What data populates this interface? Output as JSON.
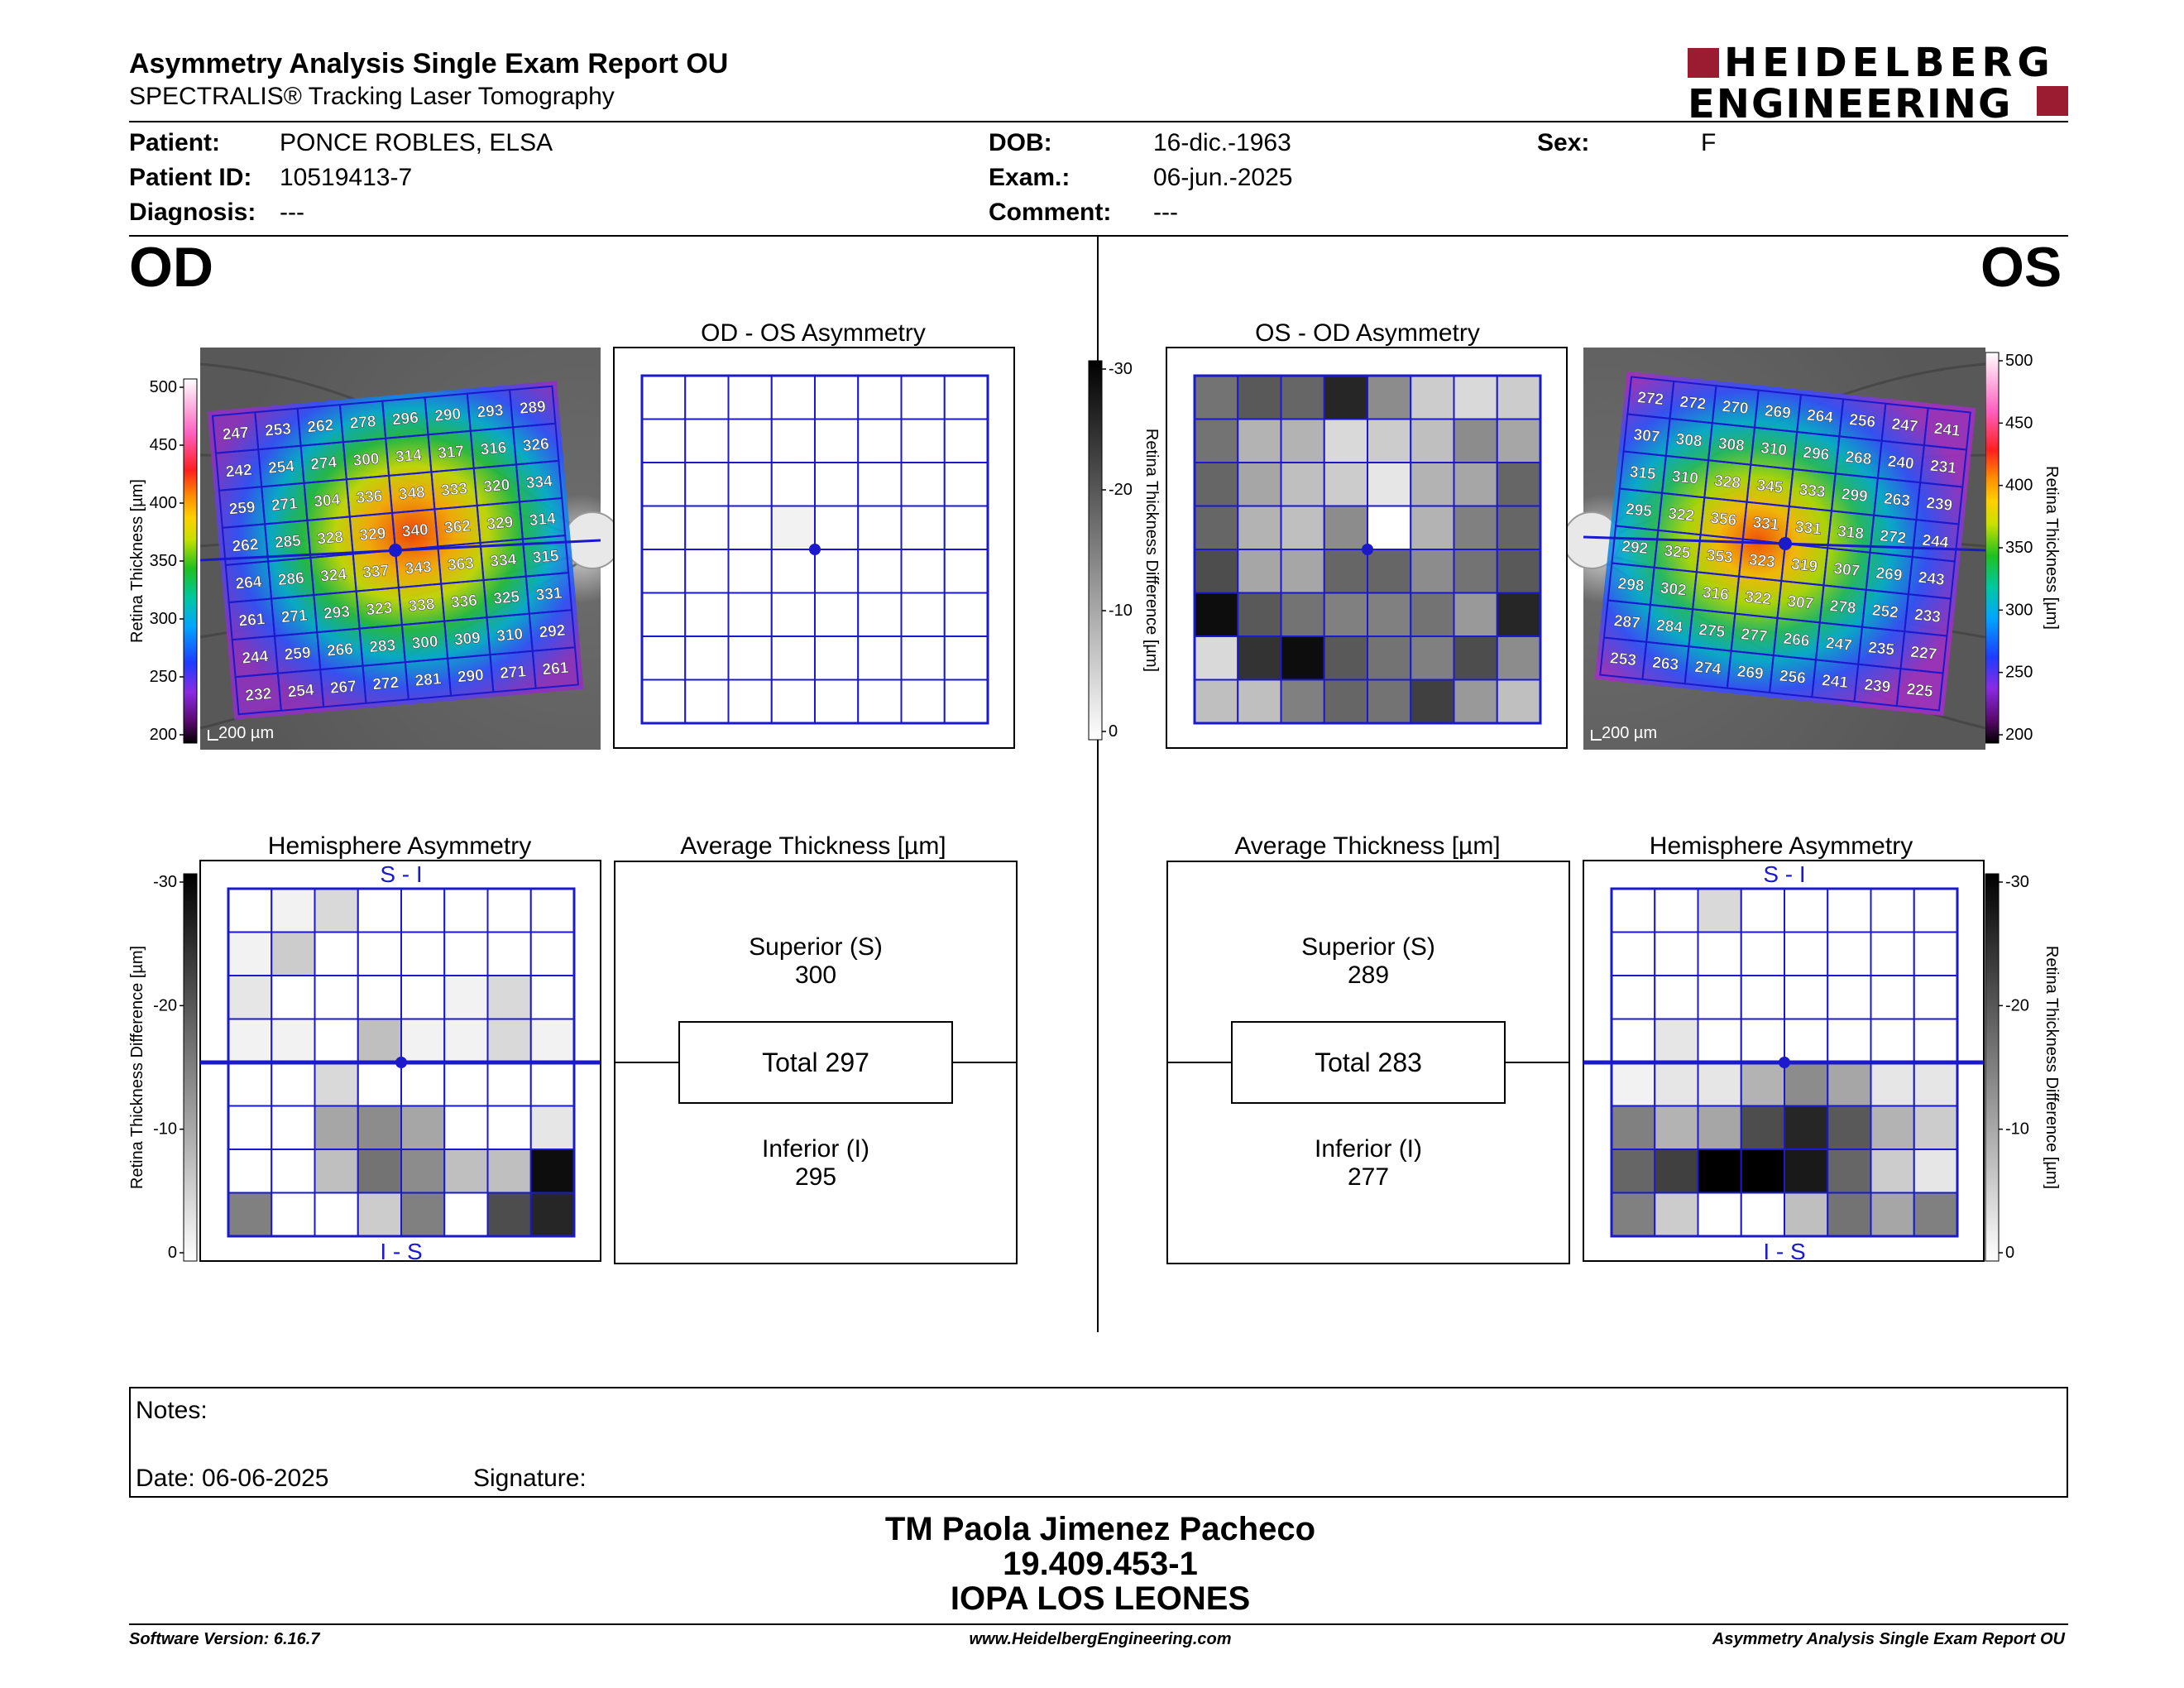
{
  "header": {
    "title": "Asymmetry Analysis Single Exam Report OU",
    "subtitle": "SPECTRALIS® Tracking Laser Tomography",
    "logo_line1": "HEIDELBERG",
    "logo_line2": "ENGINEERING"
  },
  "patient": {
    "patient_label": "Patient:",
    "patient_value": "PONCE ROBLES, ELSA",
    "id_label": "Patient ID:",
    "id_value": "10519413-7",
    "diag_label": "Diagnosis:",
    "diag_value": "---",
    "dob_label": "DOB:",
    "dob_value": "16-dic.-1963",
    "exam_label": "Exam.:",
    "exam_value": "06-jun.-2025",
    "comment_label": "Comment:",
    "comment_value": "---",
    "sex_label": "Sex:",
    "sex_value": "F"
  },
  "eyes": {
    "left": "OD",
    "right": "OS"
  },
  "panels": {
    "od_os_asym": "OD - OS Asymmetry",
    "os_od_asym": "OS - OD Asymmetry",
    "hemi": "Hemisphere Asymmetry",
    "avg": "Average Thickness [µm]",
    "s_i": "S - I",
    "i_s": "I - S",
    "scale": "200 µm"
  },
  "axes": {
    "thickness_label": "Retina Thickness [µm]",
    "diff_label": "Retina Thickness Difference [µm]",
    "thickness_ticks": [
      "500",
      "450",
      "400",
      "350",
      "300",
      "250",
      "200"
    ],
    "diff_ticks": [
      "-30",
      "-20",
      "-10",
      "0"
    ]
  },
  "od_avg": {
    "sup_label": "Superior (S)",
    "sup": "300",
    "total": "Total 297",
    "inf_label": "Inferior (I)",
    "inf": "295"
  },
  "os_avg": {
    "sup_label": "Superior (S)",
    "sup": "289",
    "total": "Total 283",
    "inf_label": "Inferior (I)",
    "inf": "277"
  },
  "od_grid": [
    [
      247,
      253,
      262,
      278,
      296,
      290,
      293,
      289
    ],
    [
      242,
      254,
      274,
      300,
      314,
      317,
      316,
      326
    ],
    [
      259,
      271,
      304,
      336,
      348,
      333,
      320,
      334
    ],
    [
      262,
      285,
      328,
      329,
      340,
      362,
      329,
      314
    ],
    [
      264,
      286,
      324,
      337,
      343,
      363,
      334,
      315
    ],
    [
      261,
      271,
      293,
      323,
      338,
      336,
      325,
      331
    ],
    [
      244,
      259,
      266,
      283,
      300,
      309,
      310,
      292
    ],
    [
      232,
      254,
      267,
      272,
      281,
      290,
      271,
      261
    ]
  ],
  "os_grid": [
    [
      272,
      272,
      270,
      269,
      264,
      256,
      247,
      241
    ],
    [
      307,
      308,
      308,
      310,
      296,
      268,
      240,
      231
    ],
    [
      315,
      310,
      328,
      345,
      333,
      299,
      263,
      239
    ],
    [
      295,
      322,
      356,
      331,
      331,
      318,
      272,
      244
    ],
    [
      292,
      325,
      353,
      323,
      319,
      307,
      269,
      243
    ],
    [
      298,
      302,
      316,
      322,
      307,
      278,
      252,
      233
    ],
    [
      287,
      284,
      275,
      277,
      266,
      247,
      235,
      227
    ],
    [
      253,
      263,
      274,
      269,
      256,
      241,
      239,
      225
    ]
  ],
  "od_os_diff_gray": [
    [
      0,
      0,
      0,
      0,
      0,
      0,
      0,
      0
    ],
    [
      0,
      0,
      0,
      0,
      0,
      0,
      0,
      0
    ],
    [
      0,
      0,
      0,
      0,
      0,
      0,
      0,
      0
    ],
    [
      0,
      0,
      0,
      0.05,
      0,
      0,
      0,
      0
    ],
    [
      0,
      0,
      0,
      0,
      0,
      0,
      0,
      0
    ],
    [
      0,
      0,
      0,
      0,
      0,
      0,
      0,
      0
    ],
    [
      0,
      0,
      0,
      0,
      0,
      0,
      0,
      0
    ],
    [
      0,
      0,
      0,
      0,
      0,
      0,
      0,
      0
    ]
  ],
  "os_od_diff_gray": [
    [
      0.55,
      0.65,
      0.6,
      0.85,
      0.45,
      0.2,
      0.15,
      0.2
    ],
    [
      0.55,
      0.3,
      0.3,
      0.15,
      0.2,
      0.25,
      0.45,
      0.35
    ],
    [
      0.6,
      0.35,
      0.25,
      0.2,
      0.1,
      0.3,
      0.35,
      0.6
    ],
    [
      0.6,
      0.3,
      0.25,
      0.45,
      0.0,
      0.3,
      0.5,
      0.6
    ],
    [
      0.7,
      0.35,
      0.35,
      0.6,
      0.6,
      0.45,
      0.55,
      0.65
    ],
    [
      0.95,
      0.65,
      0.55,
      0.5,
      0.5,
      0.55,
      0.4,
      0.85
    ],
    [
      0.15,
      0.8,
      0.95,
      0.65,
      0.55,
      0.5,
      0.7,
      0.45
    ],
    [
      0.25,
      0.25,
      0.5,
      0.6,
      0.55,
      0.75,
      0.4,
      0.25
    ]
  ],
  "od_hemi_gray": [
    [
      0,
      0.05,
      0.15,
      0,
      0,
      0,
      0,
      0
    ],
    [
      0.05,
      0.2,
      0,
      0,
      0,
      0,
      0,
      0
    ],
    [
      0.1,
      0,
      0,
      0,
      0,
      0.05,
      0.15,
      0
    ],
    [
      0.05,
      0.05,
      0,
      0.25,
      0.05,
      0.05,
      0.15,
      0.05
    ],
    [
      0,
      0,
      0.15,
      0,
      0,
      0,
      0,
      0
    ],
    [
      0,
      0,
      0.35,
      0.45,
      0.35,
      0,
      0,
      0.1
    ],
    [
      0,
      0,
      0.25,
      0.55,
      0.45,
      0.25,
      0.25,
      0.95
    ],
    [
      0.5,
      0,
      0,
      0.2,
      0.5,
      0,
      0.7,
      0.85
    ]
  ],
  "os_hemi_gray": [
    [
      0,
      0,
      0.15,
      0,
      0,
      0,
      0,
      0
    ],
    [
      0,
      0,
      0,
      0,
      0,
      0,
      0,
      0
    ],
    [
      0,
      0,
      0,
      0,
      0,
      0,
      0,
      0
    ],
    [
      0,
      0.1,
      0,
      0,
      0,
      0,
      0,
      0
    ],
    [
      0.05,
      0.1,
      0.1,
      0.3,
      0.45,
      0.35,
      0.1,
      0.1
    ],
    [
      0.5,
      0.3,
      0.35,
      0.7,
      0.85,
      0.65,
      0.3,
      0.2
    ],
    [
      0.6,
      0.75,
      1.0,
      1.0,
      0.9,
      0.6,
      0.2,
      0.1
    ],
    [
      0.5,
      0.2,
      0,
      0,
      0.25,
      0.55,
      0.35,
      0.5
    ]
  ],
  "notes": {
    "notes_label": "Notes:",
    "date_label": "Date: 06-06-2025",
    "signature_label": "Signature:"
  },
  "signatory": {
    "name": "TM Paola Jimenez Pacheco",
    "id": "19.409.453-1",
    "org": "IOPA LOS LEONES"
  },
  "footer": {
    "version": "Software Version: 6.16.7",
    "url": "www.HeidelbergEngineering.com",
    "report": "Asymmetry Analysis Single Exam Report OU"
  },
  "colors": {
    "grid_blue": "#1a1acc",
    "logo_red": "#9b1b30"
  }
}
